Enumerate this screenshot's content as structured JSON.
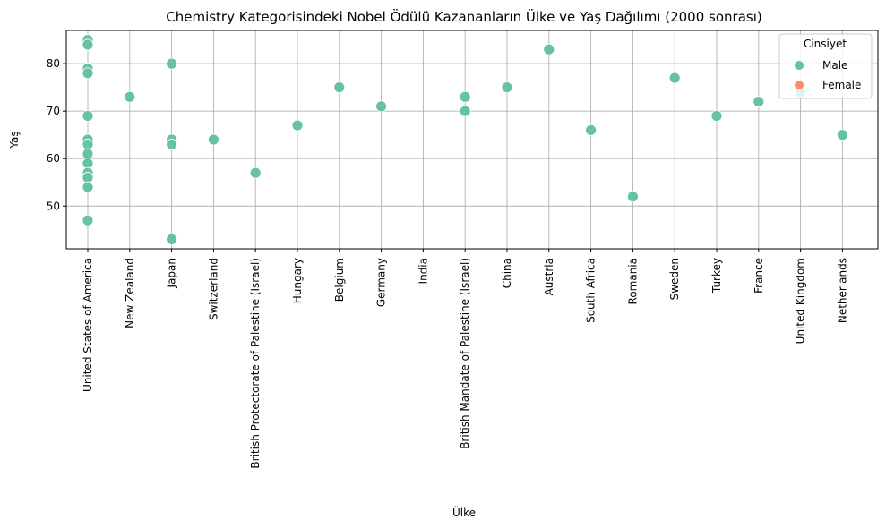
{
  "chart_data": {
    "type": "scatter",
    "title": "Chemistry Kategorisindeki Nobel Ödülü Kazananların Ülke ve Yaş Dağılımı (2000 sonrası)",
    "xlabel": "Ülke",
    "ylabel": "Yaş",
    "ylim": [
      41,
      87
    ],
    "yticks": [
      50,
      60,
      70,
      80
    ],
    "grid": true,
    "legend": {
      "title": "Cinsiyet",
      "placement": "top-right",
      "entries": [
        {
          "name": "Male",
          "color": "#66c2a5"
        },
        {
          "name": "Female",
          "color": "#fc8d62"
        }
      ]
    },
    "categories": [
      "United States of America",
      "New Zealand",
      "Japan",
      "Switzerland",
      "British Protectorate of Palestine (Israel)",
      "Hungary",
      "Belgium",
      "Germany",
      "India",
      "British Mandate of Palestine (Israel)",
      "China",
      "Austria",
      "South Africa",
      "Romania",
      "Sweden",
      "Turkey",
      "France",
      "United Kingdom",
      "Netherlands"
    ],
    "series": [
      {
        "name": "Male",
        "color": "#66c2a5",
        "points": [
          {
            "x": "United States of America",
            "y": 85
          },
          {
            "x": "United States of America",
            "y": 84
          },
          {
            "x": "United States of America",
            "y": 79
          },
          {
            "x": "United States of America",
            "y": 78
          },
          {
            "x": "United States of America",
            "y": 69
          },
          {
            "x": "United States of America",
            "y": 64
          },
          {
            "x": "United States of America",
            "y": 63
          },
          {
            "x": "United States of America",
            "y": 61
          },
          {
            "x": "United States of America",
            "y": 59
          },
          {
            "x": "United States of America",
            "y": 57
          },
          {
            "x": "United States of America",
            "y": 56
          },
          {
            "x": "United States of America",
            "y": 54
          },
          {
            "x": "United States of America",
            "y": 47
          },
          {
            "x": "New Zealand",
            "y": 73
          },
          {
            "x": "Japan",
            "y": 80
          },
          {
            "x": "Japan",
            "y": 64
          },
          {
            "x": "Japan",
            "y": 63
          },
          {
            "x": "Japan",
            "y": 43
          },
          {
            "x": "Switzerland",
            "y": 64
          },
          {
            "x": "British Protectorate of Palestine (Israel)",
            "y": 57
          },
          {
            "x": "Hungary",
            "y": 67
          },
          {
            "x": "Belgium",
            "y": 75
          },
          {
            "x": "Germany",
            "y": 71
          },
          {
            "x": "British Mandate of Palestine (Israel)",
            "y": 73
          },
          {
            "x": "British Mandate of Palestine (Israel)",
            "y": 70
          },
          {
            "x": "China",
            "y": 75
          },
          {
            "x": "Austria",
            "y": 83
          },
          {
            "x": "South Africa",
            "y": 66
          },
          {
            "x": "Romania",
            "y": 52
          },
          {
            "x": "Sweden",
            "y": 77
          },
          {
            "x": "Turkey",
            "y": 69
          },
          {
            "x": "France",
            "y": 72
          },
          {
            "x": "United Kingdom",
            "y": 74
          },
          {
            "x": "Netherlands",
            "y": 65
          }
        ]
      },
      {
        "name": "Female",
        "color": "#fc8d62",
        "points": []
      }
    ]
  }
}
